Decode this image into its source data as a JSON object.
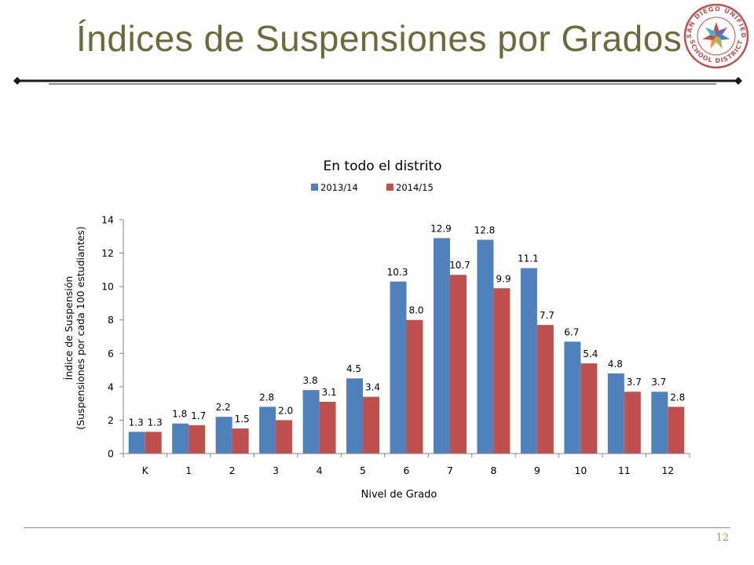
{
  "slide": {
    "title": "Índices de Suspensiones por Grados",
    "page_number": "12",
    "logo_text": "SAN DIEGO UNIFIED SCHOOL DISTRICT"
  },
  "colors": {
    "title": "#6b6a3a",
    "series_2013": "#4f81bd",
    "series_2014": "#c0504d"
  },
  "chart_data": {
    "type": "bar",
    "title": "En todo el distrito",
    "xlabel": "Nivel de Grado",
    "ylabel": [
      "Índice de Suspensión",
      "(Suspensiones por cada 100 estudiantes)"
    ],
    "categories": [
      "K",
      "1",
      "2",
      "3",
      "4",
      "5",
      "6",
      "7",
      "8",
      "9",
      "10",
      "11",
      "12"
    ],
    "ylim": [
      0,
      14
    ],
    "yticks": [
      0,
      2,
      4,
      6,
      8,
      10,
      12,
      14
    ],
    "grid": false,
    "legend_position": "top",
    "series": [
      {
        "name": "2013/14",
        "color": "#4f81bd",
        "values": [
          1.3,
          1.8,
          2.2,
          2.8,
          3.8,
          4.5,
          10.3,
          12.9,
          12.8,
          11.1,
          6.7,
          4.8,
          3.7
        ]
      },
      {
        "name": "2014/15",
        "color": "#c0504d",
        "values": [
          1.3,
          1.7,
          1.5,
          2.0,
          3.1,
          3.4,
          8.0,
          10.7,
          9.9,
          7.7,
          5.4,
          3.7,
          2.8
        ]
      }
    ]
  }
}
